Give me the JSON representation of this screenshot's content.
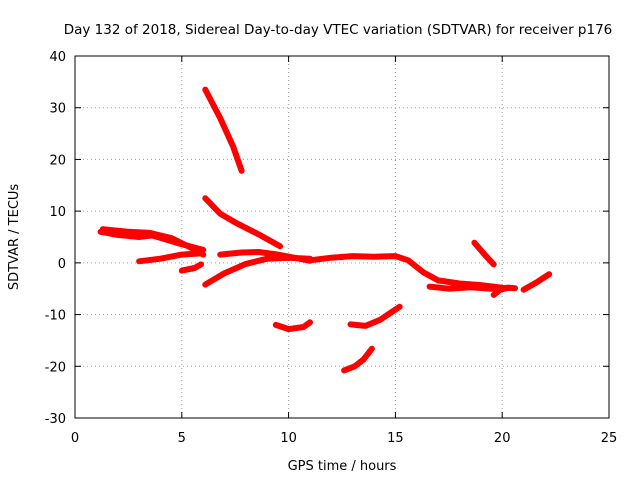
{
  "chart_data": {
    "type": "line",
    "title": "Day 132 of 2018, Sidereal Day-to-day VTEC variation (SDTVAR) for receiver p176",
    "xlabel": "GPS time / hours",
    "ylabel": "SDTVAR / TECUs",
    "xlim": [
      0,
      25
    ],
    "ylim": [
      -30,
      40
    ],
    "x_ticks": [
      0,
      5,
      10,
      15,
      20,
      25
    ],
    "y_ticks": [
      -30,
      -20,
      -10,
      0,
      10,
      20,
      30,
      40
    ],
    "grid": true,
    "series_color": "#ff0000",
    "series": [
      {
        "points": [
          [
            1.2,
            6.0
          ],
          [
            2.0,
            5.4
          ],
          [
            3.0,
            5.0
          ],
          [
            3.6,
            5.3
          ],
          [
            4.2,
            4.6
          ],
          [
            5.0,
            3.6
          ],
          [
            6.0,
            2.5
          ]
        ]
      },
      {
        "points": [
          [
            1.3,
            6.5
          ],
          [
            2.5,
            6.0
          ],
          [
            3.5,
            5.8
          ],
          [
            4.5,
            4.8
          ],
          [
            5.3,
            3.2
          ],
          [
            6.0,
            1.6
          ]
        ]
      },
      {
        "points": [
          [
            3.0,
            0.3
          ],
          [
            4.0,
            0.8
          ],
          [
            5.0,
            1.6
          ],
          [
            5.8,
            1.8
          ]
        ]
      },
      {
        "points": [
          [
            5.0,
            -1.5
          ],
          [
            5.6,
            -1.0
          ],
          [
            5.9,
            -0.3
          ]
        ]
      },
      {
        "points": [
          [
            6.1,
            33.5
          ],
          [
            6.8,
            28.0
          ],
          [
            7.4,
            22.5
          ],
          [
            7.8,
            17.8
          ]
        ]
      },
      {
        "points": [
          [
            6.1,
            12.5
          ],
          [
            6.8,
            9.5
          ],
          [
            7.6,
            7.6
          ],
          [
            8.6,
            5.5
          ],
          [
            9.6,
            3.2
          ]
        ]
      },
      {
        "points": [
          [
            6.1,
            -4.2
          ],
          [
            7.0,
            -2.0
          ],
          [
            8.0,
            -0.2
          ],
          [
            9.0,
            0.8
          ],
          [
            10.0,
            1.0
          ],
          [
            11.0,
            0.8
          ]
        ]
      },
      {
        "points": [
          [
            6.8,
            1.6
          ],
          [
            7.8,
            2.0
          ],
          [
            8.6,
            2.1
          ],
          [
            9.5,
            1.6
          ],
          [
            10.5,
            0.8
          ],
          [
            11.0,
            0.4
          ]
        ]
      },
      {
        "points": [
          [
            11.0,
            0.5
          ],
          [
            12.0,
            1.0
          ],
          [
            13.0,
            1.3
          ],
          [
            14.0,
            1.2
          ],
          [
            15.0,
            1.3
          ],
          [
            15.6,
            0.5
          ],
          [
            16.3,
            -1.8
          ],
          [
            17.0,
            -3.4
          ],
          [
            18.0,
            -4.0
          ],
          [
            19.0,
            -4.3
          ],
          [
            20.0,
            -4.8
          ]
        ]
      },
      {
        "points": [
          [
            16.6,
            -4.6
          ],
          [
            17.5,
            -5.0
          ],
          [
            18.5,
            -4.7
          ],
          [
            19.5,
            -5.0
          ],
          [
            20.3,
            -4.8
          ]
        ]
      },
      {
        "points": [
          [
            19.6,
            -6.2
          ],
          [
            19.9,
            -5.2
          ],
          [
            20.3,
            -4.8
          ],
          [
            20.6,
            -4.9
          ]
        ]
      },
      {
        "points": [
          [
            21.0,
            -5.2
          ],
          [
            21.6,
            -3.8
          ],
          [
            22.2,
            -2.2
          ]
        ]
      },
      {
        "points": [
          [
            18.7,
            3.9
          ],
          [
            19.2,
            1.5
          ],
          [
            19.6,
            -0.3
          ]
        ]
      },
      {
        "points": [
          [
            9.4,
            -12.0
          ],
          [
            10.0,
            -12.8
          ],
          [
            10.7,
            -12.4
          ],
          [
            11.0,
            -11.5
          ]
        ]
      },
      {
        "points": [
          [
            12.9,
            -11.9
          ],
          [
            13.6,
            -12.2
          ],
          [
            14.3,
            -11.0
          ],
          [
            14.9,
            -9.3
          ],
          [
            15.2,
            -8.5
          ]
        ]
      },
      {
        "points": [
          [
            12.6,
            -20.8
          ],
          [
            13.1,
            -20.0
          ],
          [
            13.5,
            -18.7
          ],
          [
            13.9,
            -16.6
          ]
        ]
      }
    ]
  }
}
